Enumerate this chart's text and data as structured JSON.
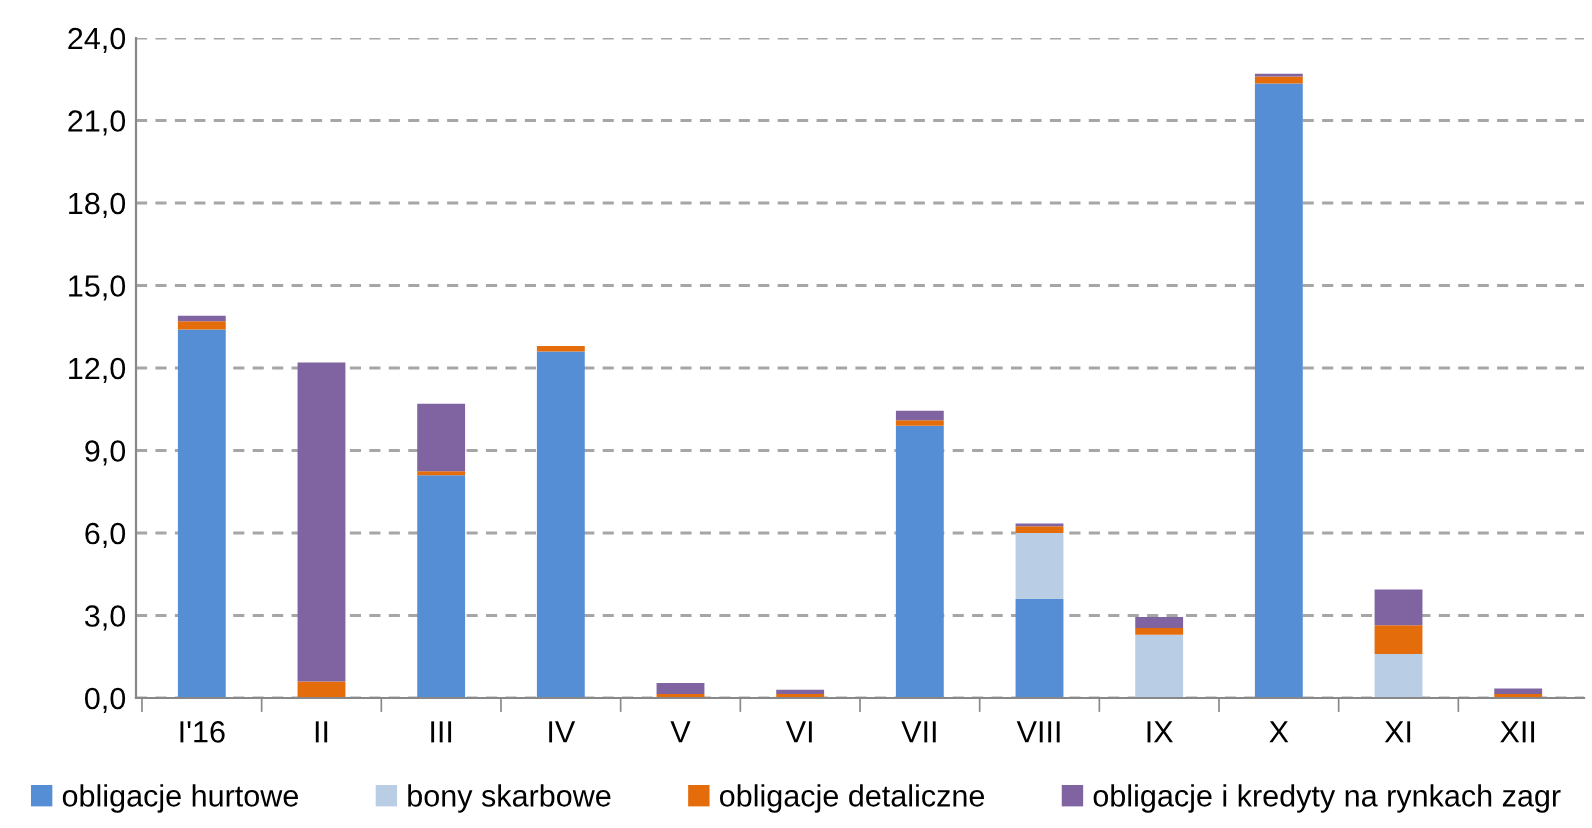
{
  "chart_data": {
    "type": "bar",
    "stacked": true,
    "categories": [
      "I'16",
      "II",
      "III",
      "IV",
      "V",
      "VI",
      "VII",
      "VIII",
      "IX",
      "X",
      "XI",
      "XII"
    ],
    "series": [
      {
        "name": "obligacje hurtowe",
        "color": "#558ed5",
        "values": [
          13.4,
          null,
          8.1,
          12.6,
          null,
          null,
          9.9,
          3.6,
          null,
          22.35,
          null,
          null
        ]
      },
      {
        "name": "bony skarbowe",
        "color": "#b9cde5",
        "values": [
          null,
          null,
          null,
          null,
          null,
          null,
          null,
          2.4,
          2.3,
          null,
          1.6,
          null
        ]
      },
      {
        "name": "obligacje detaliczne",
        "color": "#e46c0a",
        "values": [
          0.3,
          0.6,
          0.15,
          0.2,
          0.15,
          0.15,
          0.2,
          0.25,
          0.25,
          0.25,
          1.05,
          0.15
        ]
      },
      {
        "name": "obligacje i kredyty na rynkach zagr",
        "color": "#8064a2",
        "values": [
          0.2,
          11.6,
          2.45,
          null,
          0.4,
          0.15,
          0.35,
          0.1,
          0.4,
          0.1,
          1.3,
          0.2
        ]
      }
    ],
    "ylim": [
      0,
      24
    ],
    "yticks": [
      {
        "value": 0,
        "label": "0,0"
      },
      {
        "value": 3,
        "label": "3,0"
      },
      {
        "value": 6,
        "label": "6,0"
      },
      {
        "value": 9,
        "label": "9,0"
      },
      {
        "value": 12,
        "label": "12,0"
      },
      {
        "value": 15,
        "label": "15,0"
      },
      {
        "value": 18,
        "label": "18,0"
      },
      {
        "value": 21,
        "label": "21,0"
      },
      {
        "value": 24,
        "label": "24,0"
      }
    ],
    "grid": "y",
    "legend": "bottom"
  }
}
